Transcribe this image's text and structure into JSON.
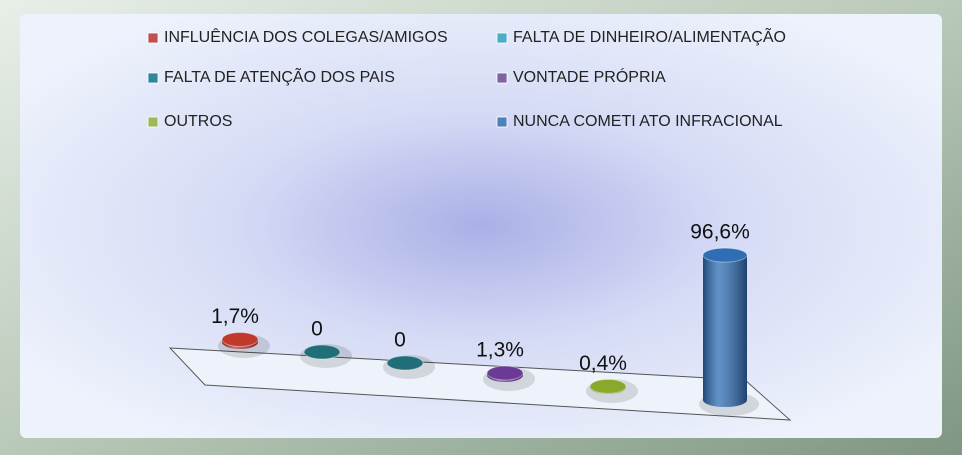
{
  "chart_data": {
    "type": "bar3d",
    "categories": [
      "INFLUÊNCIA DOS COLEGAS/AMIGOS",
      "FALTA DE DINHEIRO/ALIMENTAÇÃO",
      "FALTA DE ATENÇÃO DOS PAIS",
      "VONTADE PRÓPRIA",
      "OUTROS",
      "NUNCA COMETI ATO INFRACIONAL"
    ],
    "values": [
      1.7,
      0,
      0,
      1.3,
      0.4,
      96.6
    ],
    "value_labels": [
      "1,7%",
      "0",
      "0",
      "1,3%",
      "0,4%",
      "96,6%"
    ],
    "colors": [
      "#c0392b",
      "#1f6e78",
      "#1f6e78",
      "#6b3a96",
      "#8aa82a",
      "#2f6db5"
    ],
    "legend_colors": [
      "#c0504d",
      "#4bacc6",
      "#31859c",
      "#8064a2",
      "#9bbb59",
      "#4f81bd"
    ]
  }
}
